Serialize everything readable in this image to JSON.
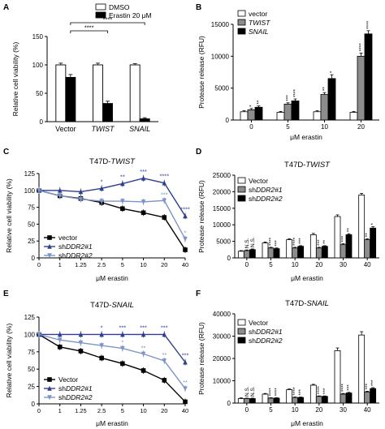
{
  "figure": {
    "panels": [
      {
        "letter": "A"
      },
      {
        "letter": "B"
      },
      {
        "letter": "C"
      },
      {
        "letter": "D"
      },
      {
        "letter": "E"
      },
      {
        "letter": "F"
      }
    ]
  },
  "colors": {
    "black": "#000000",
    "gray": "#8c8c8c",
    "white": "#ffffff",
    "dark_blue": "#2e3f8f",
    "light_blue": "#7d93cc"
  },
  "chart_data": [
    {
      "panel": "A",
      "type": "bar",
      "ylabel": "Relative cell viability (%)",
      "ylim": [
        0,
        150
      ],
      "yticks": [
        0,
        50,
        100,
        150
      ],
      "categories": [
        "Vector",
        "TWIST",
        "SNAIL"
      ],
      "category_italic": [
        false,
        true,
        true
      ],
      "legend": "top-right",
      "series": [
        {
          "name": "DMSO",
          "fill": "white",
          "values": [
            100,
            100,
            100
          ],
          "errors": [
            3,
            3,
            2
          ]
        },
        {
          "name": "Erastin 20 μM",
          "fill": "black",
          "values": [
            78,
            32,
            5
          ],
          "errors": [
            5,
            4,
            2
          ]
        }
      ],
      "annotations": [
        {
          "text": "****",
          "from": "Vector-Erastin",
          "to": "TWIST-Erastin"
        },
        {
          "text": "****",
          "from": "Vector-Erastin",
          "to": "SNAIL-Erastin"
        }
      ]
    },
    {
      "panel": "B",
      "type": "bar",
      "ylabel": "Protease release (RFU)",
      "xlabel": "μM erastin",
      "ylim": [
        0,
        15000
      ],
      "yticks": [
        0,
        5000,
        10000,
        15000
      ],
      "categories": [
        "0",
        "5",
        "10",
        "20"
      ],
      "legend": "top-left",
      "series": [
        {
          "name": "vector",
          "fill": "white",
          "values": [
            1300,
            1200,
            1300,
            1200
          ],
          "errors": [
            150,
            150,
            150,
            150
          ]
        },
        {
          "name": "TWIST",
          "italic": true,
          "fill": "gray",
          "values": [
            1600,
            2500,
            4000,
            10000
          ],
          "errors": [
            200,
            200,
            300,
            500
          ]
        },
        {
          "name": "SNAIL",
          "italic": true,
          "fill": "black",
          "values": [
            2000,
            3000,
            6500,
            13500
          ],
          "errors": [
            200,
            300,
            600,
            500
          ]
        }
      ],
      "stars": [
        [
          "",
          "*",
          "**"
        ],
        [
          "",
          "***",
          "****"
        ],
        [
          "",
          "**",
          "*"
        ],
        [
          "",
          "****",
          "****"
        ]
      ]
    },
    {
      "panel": "C",
      "type": "line",
      "title": "T47D-",
      "title_italic": "TWIST",
      "ylabel": "Relative cell viability (%)",
      "xlabel": "μM erastin",
      "ylim": [
        0,
        125
      ],
      "yticks": [
        0,
        25,
        50,
        75,
        100,
        125
      ],
      "categories": [
        "0",
        "1",
        "1.25",
        "2.5",
        "5",
        "10",
        "20",
        "40"
      ],
      "legend": "bottom-left",
      "series": [
        {
          "name": "vector",
          "italic_part": "",
          "color": "black",
          "marker": "square",
          "values": [
            100,
            92,
            88,
            82,
            73,
            67,
            60,
            12
          ]
        },
        {
          "name": "sh",
          "italic_part": "DDR2#1",
          "color": "dark_blue",
          "marker": "triangle",
          "values": [
            100,
            100,
            98,
            103,
            110,
            118,
            111,
            62
          ]
        },
        {
          "name": "sh",
          "italic_part": "DDR2#2",
          "color": "light_blue",
          "marker": "triangle-down",
          "values": [
            100,
            92,
            87,
            84,
            84,
            83,
            85,
            28
          ]
        }
      ],
      "stars": [
        {
          "x": "2.5",
          "text": "*",
          "color": "dark_blue"
        },
        {
          "x": "5",
          "text": "**",
          "color": "dark_blue"
        },
        {
          "x": "10",
          "text": "***",
          "color": "dark_blue"
        },
        {
          "x": "20",
          "text": "****",
          "color": "dark_blue"
        },
        {
          "x": "20",
          "text": "***",
          "color": "light_blue"
        },
        {
          "x": "40",
          "text": "****",
          "color": "dark_blue"
        },
        {
          "x": "40",
          "text": "*",
          "color": "light_blue"
        }
      ]
    },
    {
      "panel": "D",
      "type": "bar",
      "title": "T47D-",
      "title_italic": "TWIST",
      "ylabel": "Protease release (RFU)",
      "xlabel": "μM erastin",
      "ylim": [
        0,
        25000
      ],
      "yticks": [
        0,
        5000,
        10000,
        15000,
        20000,
        25000
      ],
      "categories": [
        "0",
        "5",
        "10",
        "20",
        "30",
        "40"
      ],
      "legend": "top-left",
      "series": [
        {
          "name": "Vector",
          "italic_part": "",
          "fill": "white",
          "values": [
            2000,
            4500,
            5500,
            7000,
            12500,
            19000
          ],
          "errors": [
            200,
            300,
            300,
            400,
            500,
            500
          ]
        },
        {
          "name": "sh",
          "italic_part": "DDR2#1",
          "fill": "gray",
          "values": [
            2200,
            3000,
            3000,
            3000,
            4000,
            5500
          ],
          "errors": [
            200,
            200,
            200,
            200,
            300,
            300
          ]
        },
        {
          "name": "sh",
          "italic_part": "DDR2#2",
          "fill": "black",
          "values": [
            2500,
            2800,
            3500,
            3500,
            7000,
            9000
          ],
          "errors": [
            200,
            200,
            200,
            200,
            300,
            400
          ]
        }
      ],
      "stars": [
        [
          "N.S.",
          "N.S."
        ],
        [
          "****",
          "***"
        ],
        [
          "****",
          "***"
        ],
        [
          "***",
          "**"
        ],
        [
          "***",
          "**"
        ],
        [
          "**",
          "*"
        ]
      ]
    },
    {
      "panel": "E",
      "type": "line",
      "title": "T47D-",
      "title_italic": "SNAIL",
      "ylabel": "Relative cell viability (%)",
      "xlabel": "μM erastin",
      "ylim": [
        0,
        125
      ],
      "yticks": [
        0,
        25,
        50,
        75,
        100,
        125
      ],
      "categories": [
        "0",
        "1",
        "1.25",
        "2.5",
        "5",
        "10",
        "20",
        "40"
      ],
      "legend": "bottom-left",
      "series": [
        {
          "name": "Vector",
          "italic_part": "",
          "color": "black",
          "marker": "square",
          "values": [
            100,
            82,
            76,
            66,
            58,
            48,
            34,
            3
          ]
        },
        {
          "name": "sh",
          "italic_part": "DDR2#1",
          "color": "dark_blue",
          "marker": "triangle",
          "values": [
            100,
            100,
            100,
            100,
            100,
            100,
            100,
            60
          ]
        },
        {
          "name": "sh",
          "italic_part": "DDR2#2",
          "color": "light_blue",
          "marker": "triangle-down",
          "values": [
            100,
            92,
            88,
            84,
            80,
            72,
            62,
            22
          ]
        }
      ],
      "stars": [
        {
          "x": "2.5",
          "text": "*",
          "color": "dark_blue"
        },
        {
          "x": "5",
          "text": "***",
          "color": "dark_blue"
        },
        {
          "x": "10",
          "text": "***",
          "color": "dark_blue"
        },
        {
          "x": "20",
          "text": "***",
          "color": "dark_blue"
        },
        {
          "x": "40",
          "text": "***",
          "color": "dark_blue"
        },
        {
          "x": "5",
          "text": "*",
          "color": "light_blue"
        },
        {
          "x": "10",
          "text": "**",
          "color": "light_blue"
        },
        {
          "x": "20",
          "text": "**",
          "color": "light_blue"
        },
        {
          "x": "40",
          "text": "**",
          "color": "light_blue"
        }
      ]
    },
    {
      "panel": "F",
      "type": "bar",
      "title": "T47D-",
      "title_italic": "SNAIL",
      "ylabel": "Protease release (RFU)",
      "xlabel": "μM erastin",
      "ylim": [
        0,
        40000
      ],
      "yticks": [
        0,
        10000,
        20000,
        30000,
        40000
      ],
      "categories": [
        "0",
        "5",
        "10",
        "20",
        "30",
        "40"
      ],
      "legend": "top-left",
      "series": [
        {
          "name": "Vector",
          "italic_part": "",
          "fill": "white",
          "values": [
            2000,
            4000,
            6000,
            8000,
            23500,
            30500
          ],
          "errors": [
            300,
            300,
            300,
            400,
            1200,
            1500
          ]
        },
        {
          "name": "sh",
          "italic_part": "DDR2#1",
          "fill": "gray",
          "values": [
            2000,
            2200,
            2500,
            3000,
            4000,
            5000
          ],
          "errors": [
            200,
            200,
            200,
            200,
            300,
            300
          ]
        },
        {
          "name": "sh",
          "italic_part": "DDR2#2",
          "fill": "black",
          "values": [
            2000,
            2200,
            2500,
            3000,
            4500,
            6500
          ],
          "errors": [
            200,
            200,
            200,
            200,
            300,
            400
          ]
        }
      ],
      "stars": [
        [
          "N.S.",
          "N.S."
        ],
        [
          "****",
          "****"
        ],
        [
          "****",
          "***"
        ],
        [
          "****",
          "***"
        ],
        [
          "****",
          "***"
        ],
        [
          "***",
          "***"
        ]
      ]
    }
  ]
}
